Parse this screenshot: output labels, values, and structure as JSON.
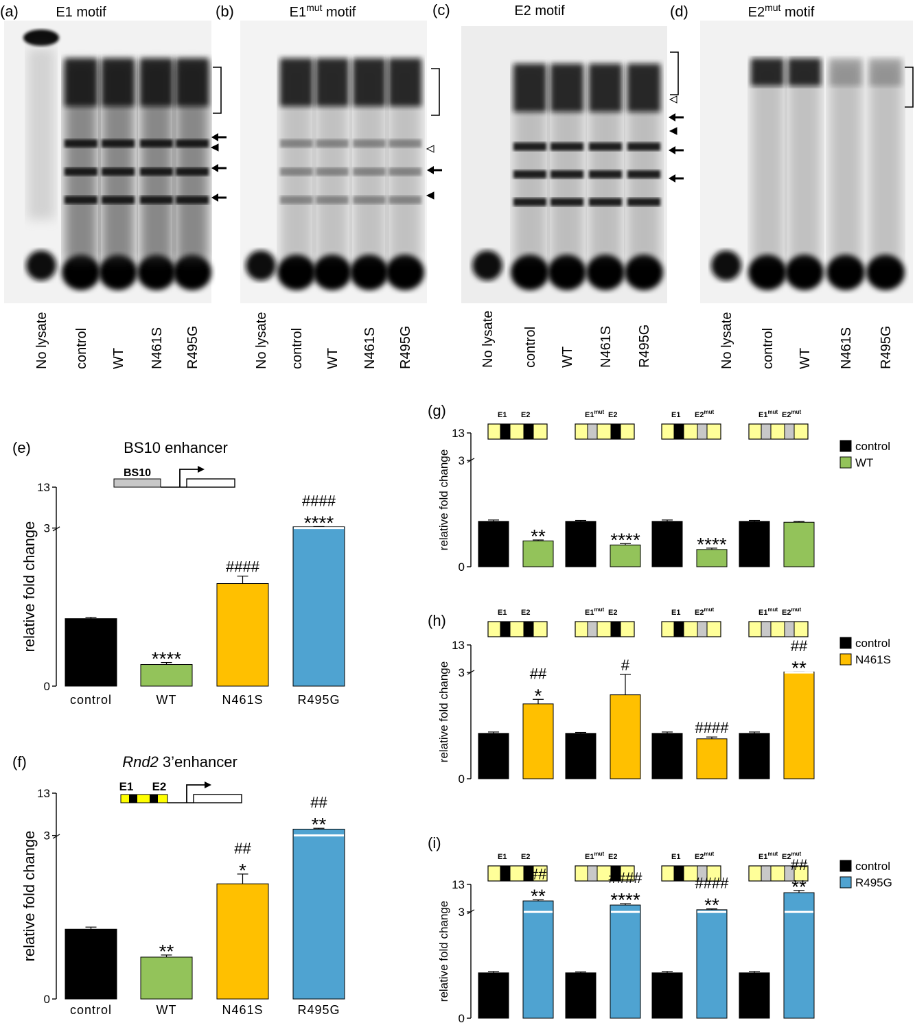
{
  "colors": {
    "black": "#000000",
    "green": "#93c35a",
    "yellow": "#ffc000",
    "blue": "#4fa3d1",
    "boxYellow": "#ffff99",
    "grey": "#c8c8c8"
  },
  "gels": [
    {
      "letter": "(a)",
      "title": "E1 motif",
      "lanes": [
        "No lysate",
        "control",
        "WT",
        "N461S",
        "R495G"
      ]
    },
    {
      "letter": "(b)",
      "title_main": "E1",
      "title_sup": "mut",
      "title_rest": " motif",
      "lanes": [
        "No lysate",
        "control",
        "WT",
        "N461S",
        "R495G"
      ]
    },
    {
      "letter": "(c)",
      "title": "E2 motif",
      "lanes": [
        "No lysate",
        "control",
        "WT",
        "N461S",
        "R495G"
      ]
    },
    {
      "letter": "(d)",
      "title_main": "E2",
      "title_sup": "mut",
      "title_rest": " motif",
      "lanes": [
        "No lysate",
        "control",
        "WT",
        "N461S",
        "R495G"
      ]
    }
  ],
  "construct_labels": {
    "bs10": "BS10",
    "e1": "E1",
    "e2": "E2",
    "mut": "mut"
  },
  "chart_data": [
    {
      "id": "e",
      "letter": "(e)",
      "type": "bar",
      "title": "BS10  enhancer",
      "ylabel": "relative fold change",
      "categories": [
        "control",
        "WT",
        "N461S",
        "R495G"
      ],
      "values": [
        1.0,
        0.32,
        1.52,
        3.3
      ],
      "errors": [
        0.02,
        0.03,
        0.11,
        0.06
      ],
      "colors": [
        "#000000",
        "#93c35a",
        "#ffc000",
        "#4fa3d1"
      ],
      "yticks": [
        "0",
        "3",
        "13"
      ],
      "broken_axis": true,
      "annotations": [
        [],
        [
          "****"
        ],
        [
          "####"
        ],
        [
          "####",
          "****"
        ]
      ]
    },
    {
      "id": "f",
      "letter": "(f)",
      "type": "bar",
      "title_italic": "Rnd2",
      "title_rest": " 3’enhancer",
      "ylabel": "relative fold change",
      "categories": [
        "control",
        "WT",
        "N461S",
        "R495G"
      ],
      "values": [
        1.0,
        0.6,
        1.65,
        4.5
      ],
      "errors": [
        0.03,
        0.03,
        0.14,
        0.2
      ],
      "colors": [
        "#000000",
        "#93c35a",
        "#ffc000",
        "#4fa3d1"
      ],
      "yticks": [
        "0",
        "3",
        "13"
      ],
      "broken_axis": true,
      "annotations": [
        [],
        [
          "**"
        ],
        [
          "##",
          "*"
        ],
        [
          "##",
          "**"
        ]
      ]
    },
    {
      "id": "g",
      "letter": "(g)",
      "type": "bar",
      "ylabel": "relative fold change",
      "groups": [
        "E1 E2",
        "E1mut E2",
        "E1 E2mut",
        "E1mut E2mut"
      ],
      "legend": [
        "control",
        "WT"
      ],
      "series": [
        {
          "name": "control",
          "values": [
            1.0,
            1.0,
            1.0,
            1.0
          ],
          "errors": [
            0.03,
            0.02,
            0.03,
            0.02
          ]
        },
        {
          "name": "WT",
          "values": [
            0.57,
            0.48,
            0.38,
            0.98
          ],
          "errors": [
            0.02,
            0.03,
            0.03,
            0.02
          ]
        }
      ],
      "series_colors": [
        "#000000",
        "#93c35a"
      ],
      "yticks": [
        "0",
        "3",
        "13"
      ],
      "annotations": [
        [
          [
            "**"
          ]
        ],
        [
          [
            "****"
          ]
        ],
        [
          [
            "****"
          ]
        ],
        [
          []
        ]
      ]
    },
    {
      "id": "h",
      "letter": "(h)",
      "type": "bar",
      "ylabel": "relative fold change",
      "groups": [
        "E1 E2",
        "E1mut E2",
        "E1 E2mut",
        "E1mut E2mut"
      ],
      "legend": [
        "control",
        "N461S"
      ],
      "series": [
        {
          "name": "control",
          "values": [
            1.0,
            1.0,
            1.0,
            1.0
          ],
          "errors": [
            0.03,
            0.02,
            0.03,
            0.03
          ]
        },
        {
          "name": "N461S",
          "values": [
            1.65,
            1.85,
            0.88,
            3.2
          ],
          "errors": [
            0.1,
            0.45,
            0.04,
            0.05
          ]
        }
      ],
      "series_colors": [
        "#000000",
        "#ffc000"
      ],
      "yticks": [
        "0",
        "3",
        "13"
      ],
      "annotations": [
        [
          "##",
          "*"
        ],
        [
          "#"
        ],
        [
          "####"
        ],
        [
          "##",
          "**"
        ]
      ]
    },
    {
      "id": "i",
      "letter": "(i)",
      "type": "bar",
      "ylabel": "relative fold change",
      "groups": [
        "E1 E2",
        "E1mut E2",
        "E1 E2mut",
        "E1mut E2mut"
      ],
      "legend": [
        "control",
        "R495G"
      ],
      "series": [
        {
          "name": "control",
          "values": [
            1.0,
            1.0,
            1.0,
            1.0
          ],
          "errors": [
            0.03,
            0.02,
            0.03,
            0.03
          ]
        },
        {
          "name": "R495G",
          "values": [
            7.0,
            5.5,
            3.8,
            10.0
          ],
          "errors": [
            0.4,
            0.5,
            0.3,
            0.8
          ]
        }
      ],
      "series_colors": [
        "#000000",
        "#4fa3d1"
      ],
      "yticks": [
        "0",
        "3",
        "13"
      ],
      "annotations": [
        [
          "##",
          "**"
        ],
        [
          "####",
          "****"
        ],
        [
          "####",
          "**"
        ],
        [
          "##",
          "**"
        ]
      ]
    }
  ]
}
